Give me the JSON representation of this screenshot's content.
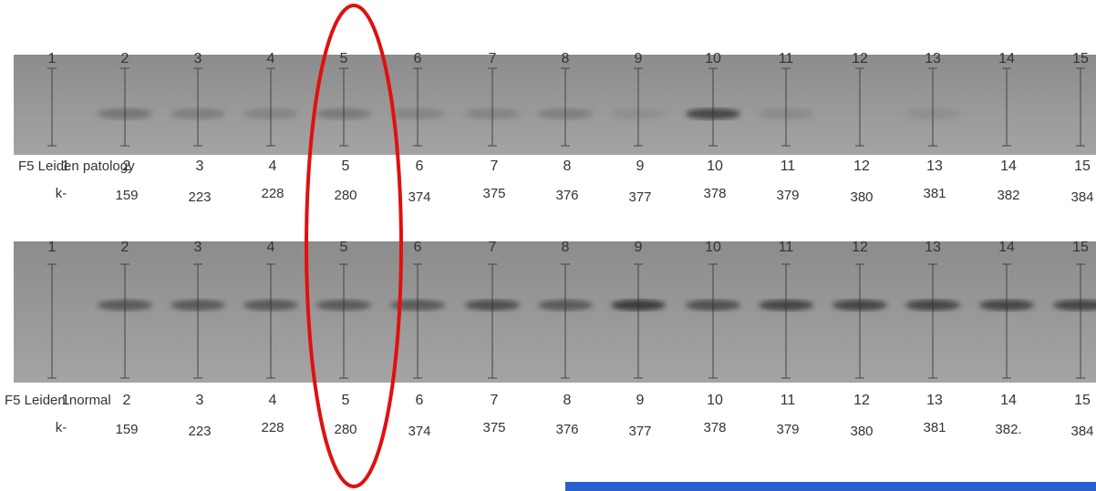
{
  "gels": [
    {
      "lane_numbers": [
        "1",
        "2",
        "3",
        "4",
        "5",
        "6",
        "7",
        "8",
        "9",
        "10",
        "11",
        "12",
        "13",
        "14",
        "15"
      ],
      "label": "F5 Leiden patology",
      "label_numbers": [
        "1",
        "2",
        "3",
        "4",
        "5",
        "6",
        "7",
        "8",
        "9",
        "10",
        "11",
        "12",
        "13",
        "14",
        "15"
      ],
      "k_row": [
        "k-",
        "159",
        "223",
        "228",
        "280",
        "374",
        "375",
        "376",
        "377",
        "378",
        "379",
        "380",
        "381",
        "382",
        "384"
      ]
    },
    {
      "lane_numbers": [
        "1",
        "2",
        "3",
        "4",
        "5",
        "6",
        "7",
        "8",
        "9",
        "10",
        "11",
        "12",
        "13",
        "14",
        "15"
      ],
      "label": "F5 Leiden normal",
      "label_numbers": [
        "1",
        "2",
        "3",
        "4",
        "5",
        "6",
        "7",
        "8",
        "9",
        "10",
        "11",
        "12",
        "13",
        "14",
        "15"
      ],
      "k_row": [
        "k-",
        "159",
        "223",
        "228",
        "280",
        "374",
        "375",
        "376",
        "377",
        "378",
        "379",
        "380",
        "381",
        "382.",
        "384"
      ]
    }
  ]
}
